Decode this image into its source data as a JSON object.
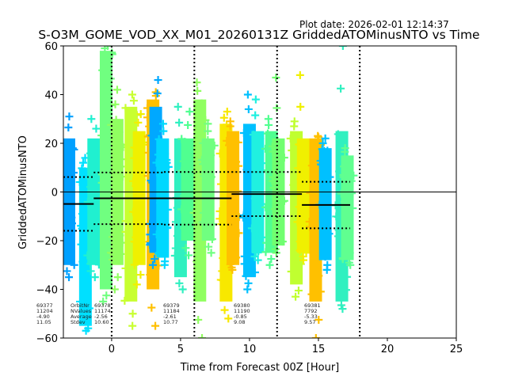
{
  "chart_data": {
    "type": "scatter",
    "title": "S-O3M_GOME_VOD_XX_M01_20260131Z GriddedATOMinusNTO vs Time",
    "plot_date": "Plot date: 2026-02-01 12:14:37",
    "xlabel": "Time from Forecast 00Z [Hour]",
    "ylabel": "GriddedATOMinusNTO",
    "xlim": [
      -3.5,
      25
    ],
    "ylim": [
      -60,
      60
    ],
    "x_ticks": [
      0,
      5,
      10,
      15,
      20,
      25
    ],
    "x_tick_labels": [
      "0",
      "5",
      "10",
      "15",
      "20",
      "25"
    ],
    "y_ticks": [
      -60,
      -40,
      -20,
      0,
      20,
      40,
      60
    ],
    "y_tick_labels": [
      "−60",
      "−40",
      "−20",
      "0",
      "20",
      "40",
      "60"
    ],
    "grid": false,
    "reference_line_y": 0,
    "forecast_boundaries_x": [
      0,
      6,
      12,
      18
    ],
    "stat_labels": [
      "OrbitNr",
      "NValues",
      "Average",
      "Stdev"
    ],
    "orbits": [
      {
        "orbit": "69377",
        "nvalues": "11204",
        "average": "-4.90",
        "stdev": "11.05",
        "x_start": -3.5,
        "x_end": -1.3,
        "label_row": "first"
      },
      {
        "orbit": "69378",
        "nvalues": "11174",
        "average": "-2.56",
        "stdev": "10.60",
        "x_start": -1.3,
        "x_end": 4.0
      },
      {
        "orbit": "69379",
        "nvalues": "11184",
        "average": "-2.61",
        "stdev": "10.77",
        "x_start": 4.0,
        "x_end": 8.7
      },
      {
        "orbit": "69380",
        "nvalues": "11190",
        "average": "-0.85",
        "stdev": "9.08",
        "x_start": 8.7,
        "x_end": 13.8
      },
      {
        "orbit": "69381",
        "nvalues": "7792",
        "average": "-5.33",
        "stdev": "9.57",
        "x_start": 13.8,
        "x_end": 17.3
      }
    ],
    "mean_segments": [
      {
        "x_start": -3.5,
        "x_end": -1.3,
        "y": -4.9
      },
      {
        "x_start": -1.3,
        "x_end": 8.7,
        "y": -2.6
      },
      {
        "x_start": 8.7,
        "x_end": 13.8,
        "y": -0.85
      },
      {
        "x_start": 13.8,
        "x_end": 17.3,
        "y": -5.33
      }
    ],
    "stdev_segments": [
      {
        "x_start": -3.5,
        "x_end": -1.3,
        "upper": 6.15,
        "lower": -15.95
      },
      {
        "x_start": -1.3,
        "x_end": 3.8,
        "upper": 8.0,
        "lower": -13.2
      },
      {
        "x_start": 3.8,
        "x_end": 8.7,
        "upper": 8.2,
        "lower": -13.4
      },
      {
        "x_start": 8.7,
        "x_end": 13.8,
        "upper": 8.2,
        "lower": -9.9
      },
      {
        "x_start": 13.8,
        "x_end": 17.3,
        "upper": 4.2,
        "lower": -14.9
      }
    ],
    "columns": [
      {
        "x": -3.1,
        "ymin": -30,
        "ymax": 22,
        "outlier_min": -35,
        "outlier_max": 31,
        "color": "#00a0ff"
      },
      {
        "x": -1.9,
        "ymin": -55,
        "ymax": 10,
        "outlier_min": -57,
        "outlier_max": 14,
        "color": "#00e0ff"
      },
      {
        "x": -1.3,
        "ymin": -30,
        "ymax": 22,
        "outlier_min": -35,
        "outlier_max": 30,
        "color": "#20f0d0"
      },
      {
        "x": -0.4,
        "ymin": -40,
        "ymax": 58,
        "outlier_min": -45,
        "outlier_max": 60,
        "color": "#70ff80"
      },
      {
        "x": 0.4,
        "ymin": -30,
        "ymax": 30,
        "outlier_min": -40,
        "outlier_max": 42,
        "color": "#90ff60"
      },
      {
        "x": 1.4,
        "ymin": -45,
        "ymax": 35,
        "outlier_min": -55,
        "outlier_max": 40,
        "color": "#c8ff30"
      },
      {
        "x": 2.0,
        "ymin": -30,
        "ymax": 25,
        "outlier_min": -38,
        "outlier_max": 32,
        "color": "#f0f000"
      },
      {
        "x": 3.0,
        "ymin": -40,
        "ymax": 38,
        "outlier_min": -55,
        "outlier_max": 41,
        "color": "#ffc000"
      },
      {
        "x": 3.2,
        "ymin": -25,
        "ymax": 35,
        "outlier_min": -30,
        "outlier_max": 46,
        "color": "#00a8ff"
      },
      {
        "x": 3.7,
        "ymin": -27,
        "ymax": 22,
        "outlier_min": -30,
        "outlier_max": 28,
        "color": "#00d8ff"
      },
      {
        "x": 5.0,
        "ymin": -35,
        "ymax": 22,
        "outlier_min": -40,
        "outlier_max": 35,
        "color": "#30f0c0"
      },
      {
        "x": 5.5,
        "ymin": -20,
        "ymax": 22,
        "outlier_min": -26,
        "outlier_max": 33,
        "color": "#50ff90"
      },
      {
        "x": 6.4,
        "ymin": -45,
        "ymax": 38,
        "outlier_min": -60,
        "outlier_max": 45,
        "color": "#90ff60"
      },
      {
        "x": 7.0,
        "ymin": -20,
        "ymax": 22,
        "outlier_min": -25,
        "outlier_max": 28,
        "color": "#70ff80"
      },
      {
        "x": 8.3,
        "ymin": -45,
        "ymax": 28,
        "outlier_min": -52,
        "outlier_max": 33,
        "color": "#f8e800"
      },
      {
        "x": 8.8,
        "ymin": -30,
        "ymax": 25,
        "outlier_min": -32,
        "outlier_max": 29,
        "color": "#ffc000"
      },
      {
        "x": 10.0,
        "ymin": -35,
        "ymax": 28,
        "outlier_min": -40,
        "outlier_max": 40,
        "color": "#00c0ff"
      },
      {
        "x": 10.6,
        "ymin": -25,
        "ymax": 25,
        "outlier_min": -28,
        "outlier_max": 38,
        "color": "#20f0e0"
      },
      {
        "x": 11.6,
        "ymin": -25,
        "ymax": 25,
        "outlier_min": -30,
        "outlier_max": 30,
        "color": "#50ff90"
      },
      {
        "x": 12.1,
        "ymin": -22,
        "ymax": 22,
        "outlier_min": -25,
        "outlier_max": 47,
        "color": "#70ff70"
      },
      {
        "x": 13.4,
        "ymin": -38,
        "ymax": 25,
        "outlier_min": -43,
        "outlier_max": 29,
        "color": "#c0ff30"
      },
      {
        "x": 13.9,
        "ymin": -25,
        "ymax": 22,
        "outlier_min": -28,
        "outlier_max": 48,
        "color": "#f0f000"
      },
      {
        "x": 14.8,
        "ymin": -45,
        "ymax": 22,
        "outlier_min": -60,
        "outlier_max": 23,
        "color": "#ffc000"
      },
      {
        "x": 15.5,
        "ymin": -28,
        "ymax": 18,
        "outlier_min": -32,
        "outlier_max": 22,
        "color": "#00c0ff"
      },
      {
        "x": 16.7,
        "ymin": -45,
        "ymax": 25,
        "outlier_min": -48,
        "outlier_max": 60,
        "color": "#30f0c0"
      },
      {
        "x": 17.1,
        "ymin": -28,
        "ymax": 15,
        "outlier_min": -30,
        "outlier_max": 18,
        "color": "#60ff90"
      }
    ]
  }
}
